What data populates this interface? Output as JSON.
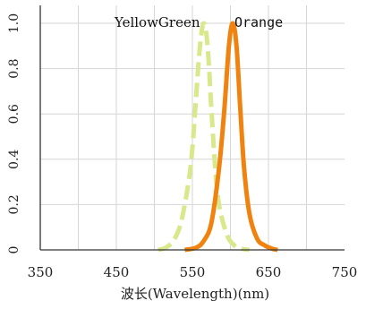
{
  "chart_data": {
    "type": "line",
    "title": "",
    "xlabel": "波长(Wavelength)(nm)",
    "ylabel": "",
    "xlim": [
      350,
      750
    ],
    "ylim": [
      0,
      1.0
    ],
    "x_ticks": [
      "350",
      "450",
      "550",
      "650",
      "750"
    ],
    "y_ticks": [
      "0",
      "0.2",
      "0.4",
      "0.6",
      "0.8",
      "1.0"
    ],
    "grid": true,
    "legend": "in-plot labels above peaks",
    "series": [
      {
        "name": "YellowGreen",
        "color": "#d8e88a",
        "style": "dashed",
        "x": [
          505,
          515,
          525,
          535,
          545,
          550,
          555,
          560,
          565,
          570,
          575,
          580,
          585,
          595,
          605,
          615,
          625
        ],
        "y": [
          0.0,
          0.01,
          0.04,
          0.12,
          0.3,
          0.45,
          0.68,
          0.9,
          1.0,
          0.9,
          0.62,
          0.36,
          0.2,
          0.07,
          0.02,
          0.005,
          0.0
        ]
      },
      {
        "name": "Orange",
        "color": "#f0820f",
        "style": "solid",
        "x": [
          540,
          555,
          565,
          575,
          585,
          592,
          598,
          603,
          608,
          613,
          618,
          625,
          635,
          645,
          655,
          662
        ],
        "y": [
          0.0,
          0.01,
          0.04,
          0.12,
          0.36,
          0.62,
          0.9,
          1.0,
          0.9,
          0.62,
          0.36,
          0.16,
          0.05,
          0.02,
          0.005,
          0.0
        ]
      }
    ]
  }
}
